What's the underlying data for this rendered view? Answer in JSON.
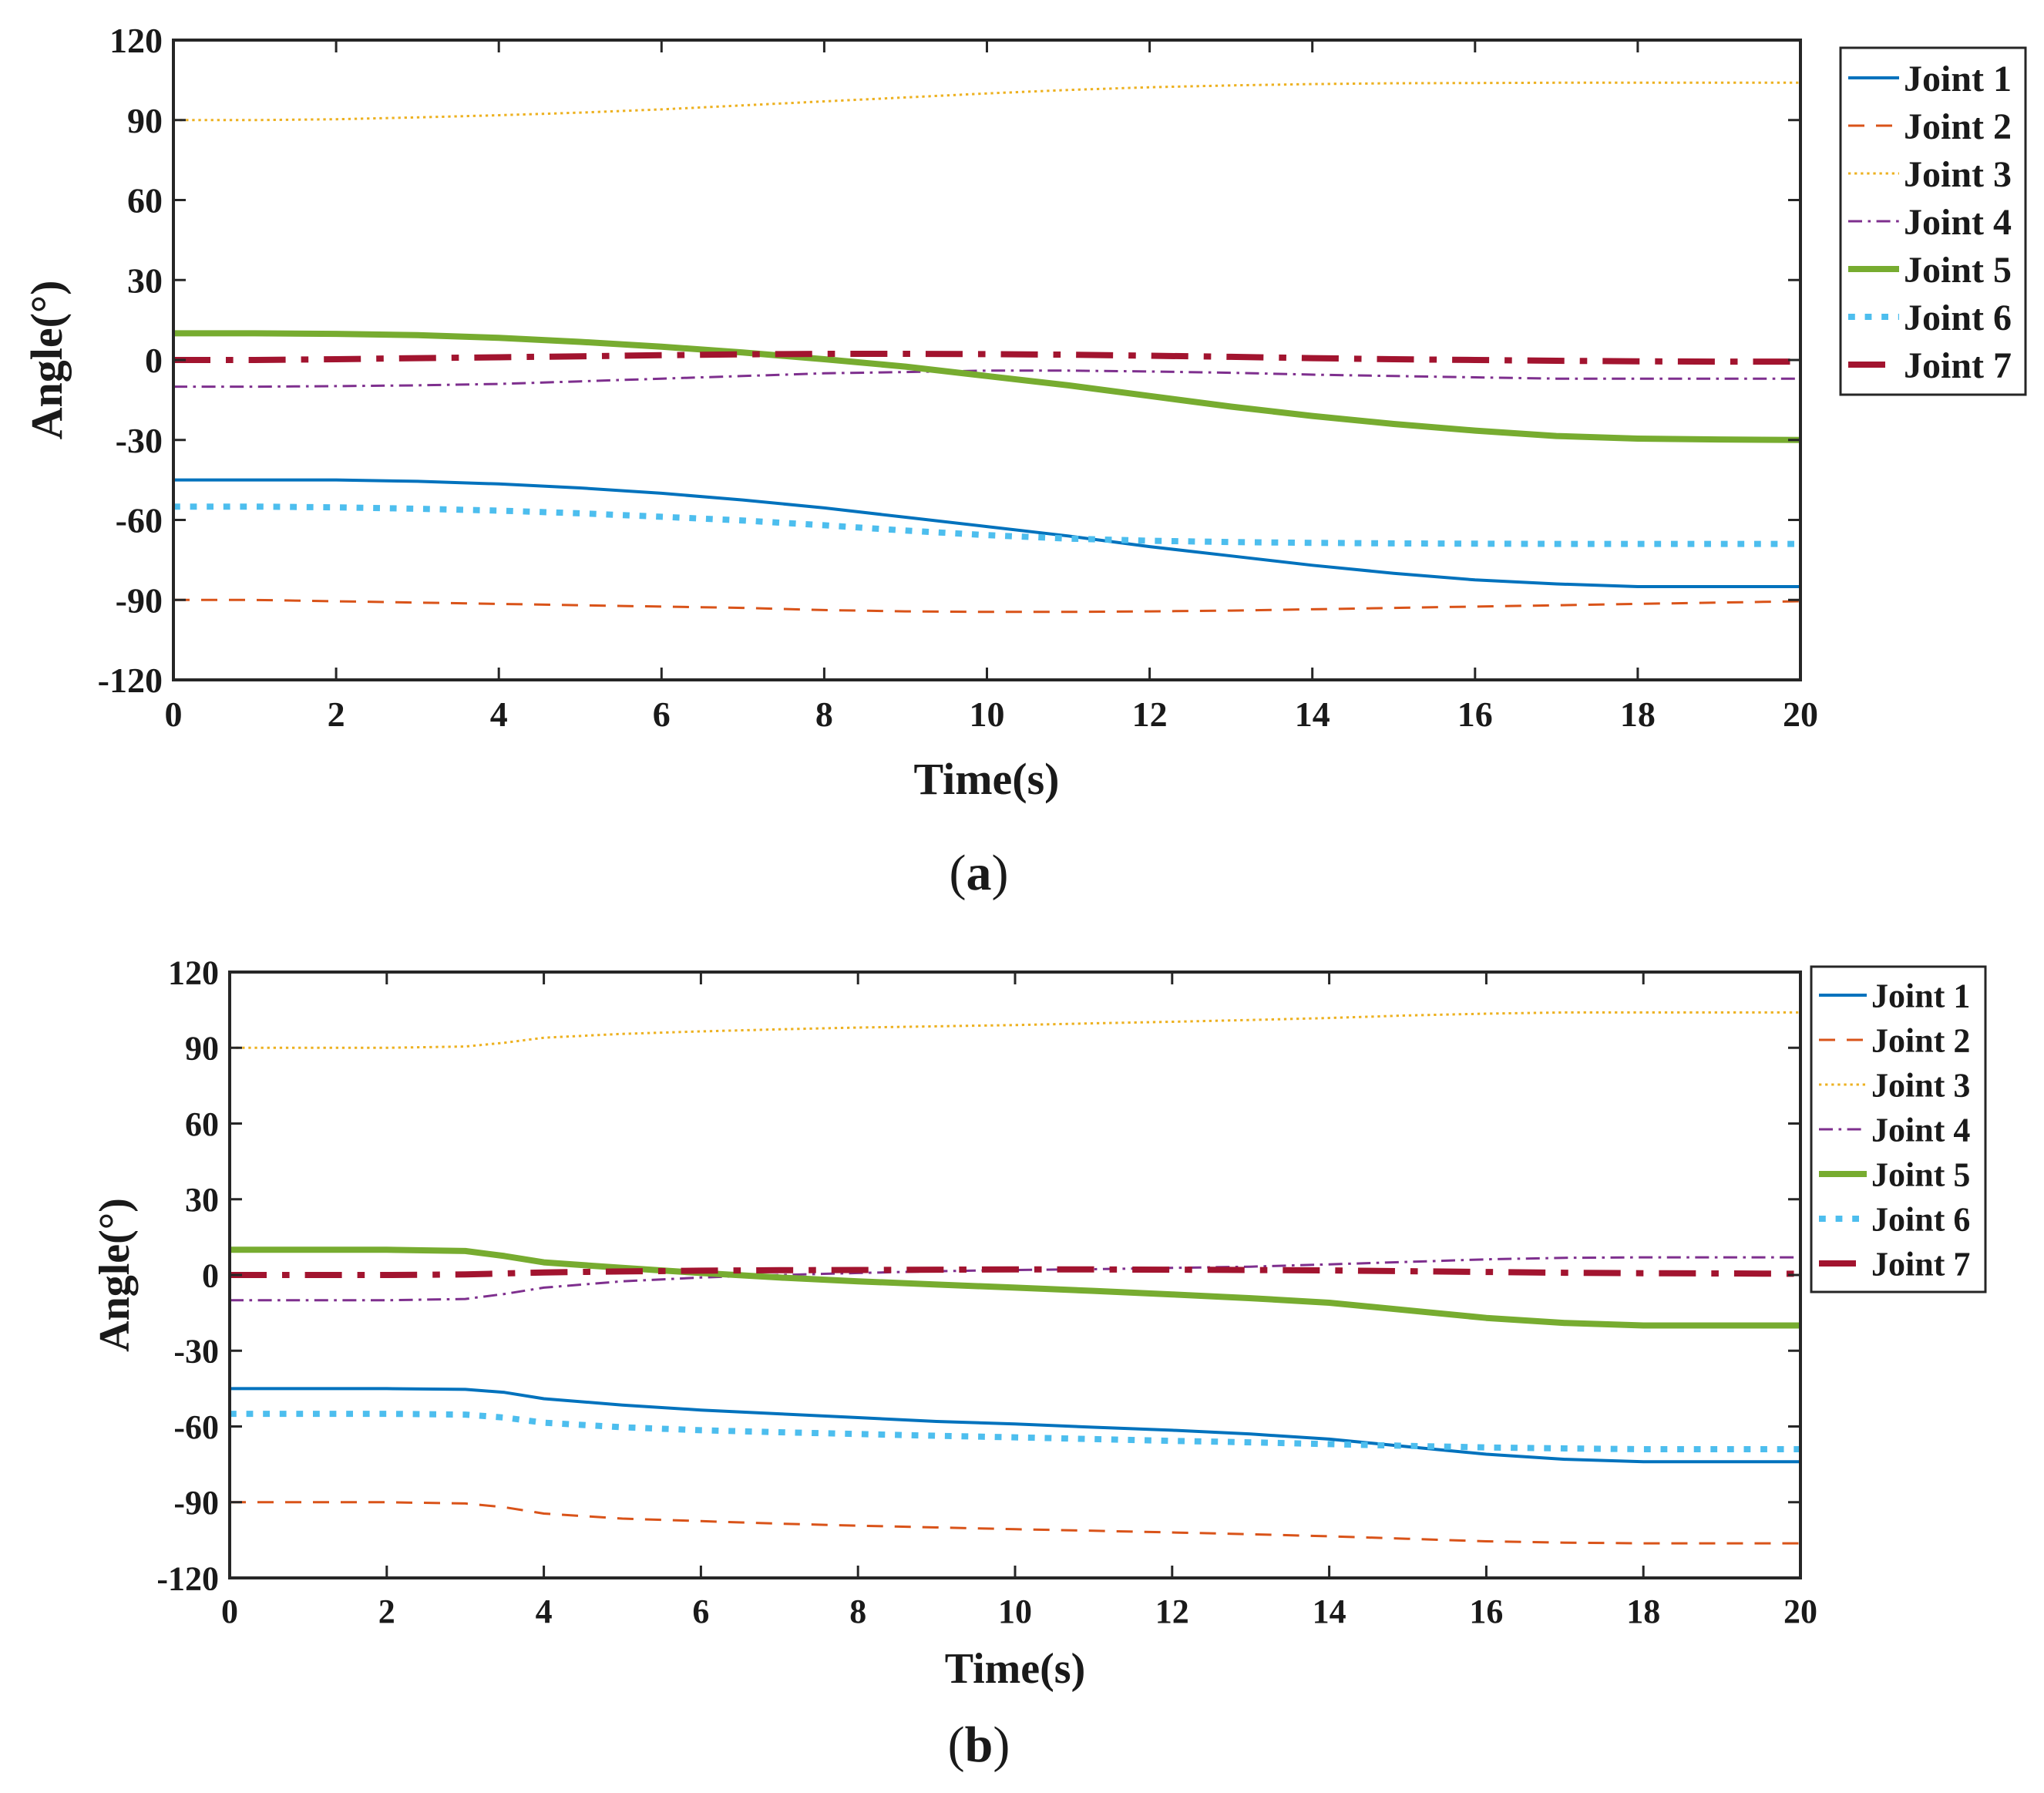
{
  "chart_data": [
    {
      "type": "line",
      "panel_label": "a",
      "xlabel": "Time(s)",
      "ylabel": "Angle(°)",
      "xlim": [
        0,
        20
      ],
      "ylim": [
        -120,
        120
      ],
      "xticks": [
        0,
        2,
        4,
        6,
        8,
        10,
        12,
        14,
        16,
        18,
        20
      ],
      "yticks": [
        -120,
        -90,
        -60,
        -30,
        0,
        30,
        60,
        90,
        120
      ],
      "grid": false,
      "legend_position": "right",
      "x": [
        0,
        1,
        2,
        3,
        4,
        5,
        6,
        7,
        8,
        9,
        10,
        11,
        12,
        13,
        14,
        15,
        16,
        17,
        18,
        19,
        20
      ],
      "series": [
        {
          "name": "Joint 1",
          "color": "#0072BD",
          "dash": "solid",
          "width": 4,
          "values": [
            -45,
            -45,
            -45,
            -45.5,
            -46.5,
            -48,
            -50,
            -52.5,
            -55.5,
            -59,
            -62.5,
            -66,
            -70,
            -73.5,
            -77,
            -80,
            -82.5,
            -84,
            -85,
            -85,
            -85
          ]
        },
        {
          "name": "Joint 2",
          "color": "#D95319",
          "dash": "dashed",
          "width": 3,
          "values": [
            -90,
            -90,
            -90.5,
            -91,
            -91.5,
            -92,
            -92.5,
            -93,
            -93.8,
            -94.3,
            -94.5,
            -94.5,
            -94.3,
            -94,
            -93.5,
            -93,
            -92.5,
            -92,
            -91.5,
            -91,
            -90.5
          ]
        },
        {
          "name": "Joint 3",
          "color": "#EDB120",
          "dash": "dotted",
          "width": 3,
          "values": [
            90,
            90,
            90.3,
            91,
            91.8,
            92.8,
            94,
            95.5,
            97,
            98.5,
            100,
            101.3,
            102.3,
            103,
            103.5,
            103.8,
            103.9,
            104,
            104,
            104,
            104
          ]
        },
        {
          "name": "Joint 4",
          "color": "#7E2F8E",
          "dash": "dashdot",
          "width": 3,
          "values": [
            -10,
            -10,
            -9.8,
            -9.5,
            -9,
            -8,
            -7,
            -6,
            -5,
            -4.5,
            -4,
            -4,
            -4.3,
            -4.8,
            -5.5,
            -6,
            -6.5,
            -7,
            -7,
            -7,
            -7
          ]
        },
        {
          "name": "Joint 5",
          "color": "#77AC30",
          "dash": "solid",
          "width": 8,
          "values": [
            10,
            10,
            9.8,
            9.3,
            8.3,
            6.8,
            5,
            2.8,
            0.3,
            -2.5,
            -6,
            -9.5,
            -13.5,
            -17.5,
            -21,
            -24,
            -26.5,
            -28.5,
            -29.5,
            -29.8,
            -30
          ]
        },
        {
          "name": "Joint 6",
          "color": "#4DBEEE",
          "dash": "dotted",
          "width": 8,
          "values": [
            -55,
            -55,
            -55.3,
            -55.8,
            -56.5,
            -57.5,
            -58.8,
            -60.2,
            -62,
            -64,
            -65.7,
            -67,
            -67.8,
            -68.3,
            -68.6,
            -68.8,
            -68.9,
            -69,
            -69,
            -69,
            -69
          ]
        },
        {
          "name": "Joint 7",
          "color": "#A2142F",
          "dash": "dashdot",
          "width": 8,
          "values": [
            0,
            0,
            0.3,
            0.7,
            1,
            1.4,
            1.8,
            2.1,
            2.3,
            2.3,
            2.2,
            2,
            1.6,
            1.2,
            0.7,
            0.3,
            0,
            -0.3,
            -0.5,
            -0.6,
            -0.6
          ]
        }
      ]
    },
    {
      "type": "line",
      "panel_label": "b",
      "xlabel": "Time(s)",
      "ylabel": "Angle(°)",
      "xlim": [
        0,
        20
      ],
      "ylim": [
        -120,
        120
      ],
      "xticks": [
        0,
        2,
        4,
        6,
        8,
        10,
        12,
        14,
        16,
        18,
        20
      ],
      "yticks": [
        -120,
        -90,
        -60,
        -30,
        0,
        30,
        60,
        90,
        120
      ],
      "grid": false,
      "legend_position": "right",
      "x": [
        0,
        1,
        2,
        3,
        3.5,
        4,
        5,
        6,
        7,
        8,
        9,
        10,
        11,
        12,
        13,
        14,
        15,
        16,
        17,
        18,
        19,
        20
      ],
      "series": [
        {
          "name": "Joint 1",
          "color": "#0072BD",
          "dash": "solid",
          "width": 4,
          "values": [
            -45,
            -45,
            -45,
            -45.3,
            -46.5,
            -49,
            -51.5,
            -53.5,
            -55,
            -56.5,
            -58,
            -59,
            -60.3,
            -61.5,
            -63,
            -65,
            -68,
            -71,
            -73,
            -74,
            -74,
            -74
          ]
        },
        {
          "name": "Joint 2",
          "color": "#D95319",
          "dash": "dashed",
          "width": 3,
          "values": [
            -90,
            -90,
            -90,
            -90.5,
            -92,
            -94.5,
            -96.5,
            -97.5,
            -98.5,
            -99.3,
            -100,
            -100.7,
            -101.3,
            -102,
            -102.7,
            -103.5,
            -104.5,
            -105.5,
            -106,
            -106.3,
            -106.3,
            -106.3
          ]
        },
        {
          "name": "Joint 3",
          "color": "#EDB120",
          "dash": "dotted",
          "width": 3,
          "values": [
            90,
            90,
            90,
            90.5,
            92,
            94,
            95.5,
            96.5,
            97.3,
            98,
            98.5,
            99,
            99.7,
            100.3,
            101,
            101.8,
            102.8,
            103.5,
            104,
            104,
            104,
            104
          ]
        },
        {
          "name": "Joint 4",
          "color": "#7E2F8E",
          "dash": "dashdot",
          "width": 3,
          "values": [
            -10,
            -10,
            -10,
            -9.5,
            -7.5,
            -5,
            -2.5,
            -1,
            0,
            0.8,
            1.5,
            2,
            2.3,
            2.8,
            3.3,
            4.2,
            5.2,
            6.2,
            6.8,
            7,
            7,
            7
          ]
        },
        {
          "name": "Joint 5",
          "color": "#77AC30",
          "dash": "solid",
          "width": 8,
          "values": [
            10,
            10,
            10,
            9.5,
            7.5,
            5,
            2.8,
            0.8,
            -1,
            -2.5,
            -3.8,
            -5,
            -6.3,
            -7.7,
            -9.2,
            -11,
            -14,
            -17,
            -19,
            -20,
            -20,
            -20
          ]
        },
        {
          "name": "Joint 6",
          "color": "#4DBEEE",
          "dash": "dotted",
          "width": 8,
          "values": [
            -55,
            -55,
            -55,
            -55.3,
            -56.5,
            -58.5,
            -60.3,
            -61.5,
            -62.3,
            -63,
            -63.7,
            -64.3,
            -65,
            -65.7,
            -66.3,
            -67,
            -67.7,
            -68.3,
            -68.7,
            -69,
            -69,
            -69
          ]
        },
        {
          "name": "Joint 7",
          "color": "#A2142F",
          "dash": "dashdot",
          "width": 8,
          "values": [
            0,
            0,
            0,
            0.2,
            0.6,
            1,
            1.4,
            1.7,
            1.9,
            2,
            2.1,
            2.2,
            2.2,
            2.1,
            2,
            1.8,
            1.5,
            1.2,
            0.9,
            0.7,
            0.6,
            0.5
          ]
        }
      ]
    }
  ]
}
